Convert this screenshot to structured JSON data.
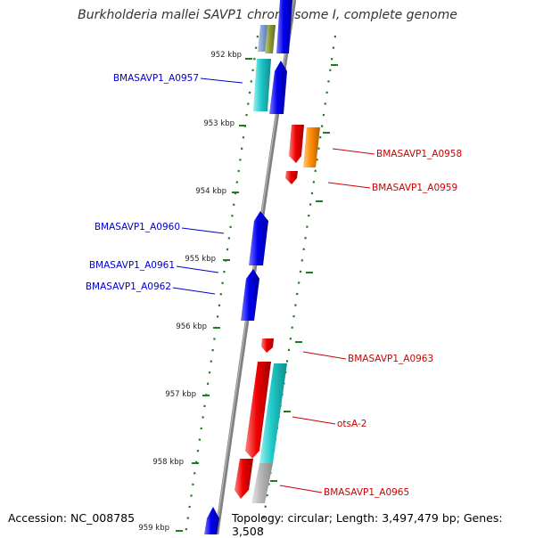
{
  "title": "Burkholderia mallei SAVP1 chromosome I, complete genome",
  "footer": {
    "accession": "Accession: NC_008785",
    "topology": "Topology: circular; Length: 3,497,479 bp; Genes: 3,508"
  },
  "colors": {
    "backbone": "#808080",
    "tick": "#1e7d1e",
    "reverse_label": "#0000cc",
    "forward_label": "#cc0000",
    "blue": "#0000ee",
    "cyan": "#1ec8c8",
    "red": "#ee0000",
    "orange": "#ff8c00",
    "grey": "#b4b4b4",
    "olive": "#8c9c3c"
  },
  "scale_labels": [
    "952 kbp",
    "953 kbp",
    "954 kbp",
    "955 kbp",
    "956 kbp",
    "957 kbp",
    "958 kbp",
    "959 kbp"
  ],
  "gene_labels": {
    "left": [
      "BMASAVP1_A0957",
      "BMASAVP1_A0960",
      "BMASAVP1_A0961",
      "BMASAVP1_A0962"
    ],
    "right": [
      "BMASAVP1_A0958",
      "BMASAVP1_A0959",
      "BMASAVP1_A0963",
      "otsA-2",
      "BMASAVP1_A0965"
    ]
  }
}
